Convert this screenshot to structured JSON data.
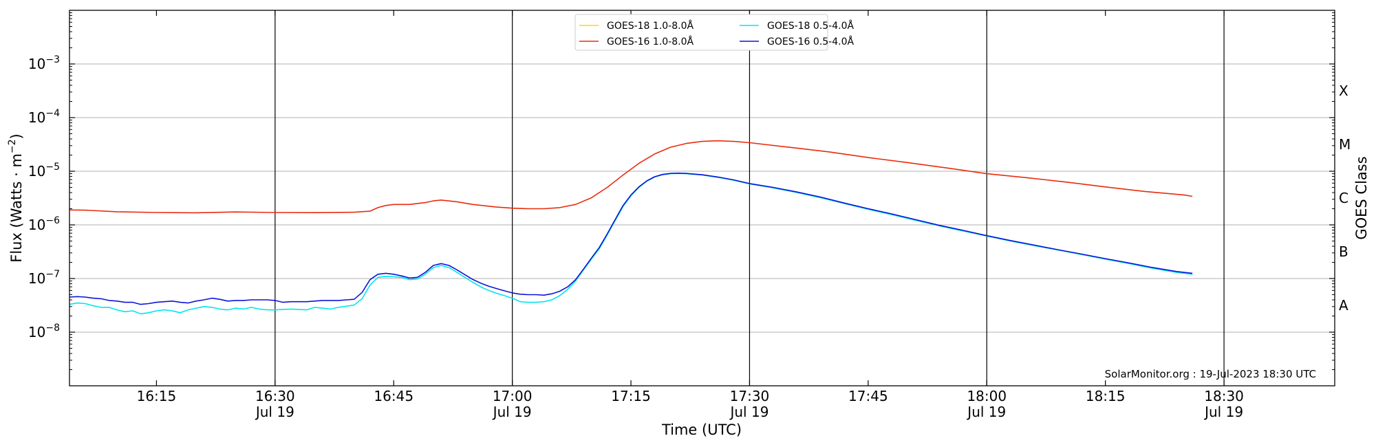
{
  "chart_data": {
    "type": "line",
    "title": "",
    "xlabel": "Time (UTC)",
    "ylabel": "Flux (Watts · m",
    "ylabel_sup": "−2",
    "ylabel_end": ")",
    "y2label": "GOES Class",
    "y_scale": "log",
    "ylim": [
      1e-09,
      0.01
    ],
    "xlim": [
      "2023-07-19 16:04",
      "2023-07-19 18:44"
    ],
    "grid": "horizontal",
    "legend_position": "top-center",
    "annotation": "SolarMonitor.org : 19-Jul-2023 18:30 UTC",
    "y_ticks": [
      {
        "value": 1e-08,
        "base": "10",
        "exp": "−8"
      },
      {
        "value": 1e-07,
        "base": "10",
        "exp": "−7"
      },
      {
        "value": 1e-06,
        "base": "10",
        "exp": "−6"
      },
      {
        "value": 1e-05,
        "base": "10",
        "exp": "−5"
      },
      {
        "value": 0.0001,
        "base": "10",
        "exp": "−4"
      },
      {
        "value": 0.001,
        "base": "10",
        "exp": "−3"
      }
    ],
    "x_ticks": [
      {
        "time": "16:15",
        "label": "16:15",
        "sub": ""
      },
      {
        "time": "16:30",
        "label": "16:30",
        "sub": "Jul 19"
      },
      {
        "time": "16:45",
        "label": "16:45",
        "sub": ""
      },
      {
        "time": "17:00",
        "label": "17:00",
        "sub": "Jul 19"
      },
      {
        "time": "17:15",
        "label": "17:15",
        "sub": ""
      },
      {
        "time": "17:30",
        "label": "17:30",
        "sub": "Jul 19"
      },
      {
        "time": "17:45",
        "label": "17:45",
        "sub": ""
      },
      {
        "time": "18:00",
        "label": "18:00",
        "sub": "Jul 19"
      },
      {
        "time": "18:15",
        "label": "18:15",
        "sub": ""
      },
      {
        "time": "18:30",
        "label": "18:30",
        "sub": "Jul 19"
      }
    ],
    "day_lines": [
      "16:30",
      "17:00",
      "17:30",
      "18:00",
      "18:30"
    ],
    "goes_classes": [
      {
        "label": "A",
        "value": 3.16e-08
      },
      {
        "label": "B",
        "value": 3.16e-07
      },
      {
        "label": "C",
        "value": 3.16e-06
      },
      {
        "label": "M",
        "value": 3.16e-05
      },
      {
        "label": "X",
        "value": 0.000316
      }
    ],
    "series": [
      {
        "name": "GOES-18 1.0-8.0Å",
        "color": "#ffd700",
        "points": []
      },
      {
        "name": "GOES-16 1.0-8.0Å",
        "color": "#e82b0c",
        "points": [
          [
            "16:04",
            1.9e-06
          ],
          [
            "16:06",
            1.88e-06
          ],
          [
            "16:10",
            1.76e-06
          ],
          [
            "16:15",
            1.7e-06
          ],
          [
            "16:20",
            1.68e-06
          ],
          [
            "16:25",
            1.74e-06
          ],
          [
            "16:30",
            1.7e-06
          ],
          [
            "16:35",
            1.69e-06
          ],
          [
            "16:40",
            1.72e-06
          ],
          [
            "16:42",
            1.8e-06
          ],
          [
            "16:43",
            2.1e-06
          ],
          [
            "16:44",
            2.3e-06
          ],
          [
            "16:45",
            2.4e-06
          ],
          [
            "16:47",
            2.4e-06
          ],
          [
            "16:49",
            2.6e-06
          ],
          [
            "16:50",
            2.8e-06
          ],
          [
            "16:51",
            2.9e-06
          ],
          [
            "16:53",
            2.7e-06
          ],
          [
            "16:55",
            2.4e-06
          ],
          [
            "16:58",
            2.15e-06
          ],
          [
            "17:00",
            2.05e-06
          ],
          [
            "17:02",
            2e-06
          ],
          [
            "17:04",
            2e-06
          ],
          [
            "17:06",
            2.1e-06
          ],
          [
            "17:08",
            2.4e-06
          ],
          [
            "17:10",
            3.2e-06
          ],
          [
            "17:12",
            5e-06
          ],
          [
            "17:14",
            8.5e-06
          ],
          [
            "17:16",
            1.4e-05
          ],
          [
            "17:18",
            2.1e-05
          ],
          [
            "17:20",
            2.8e-05
          ],
          [
            "17:22",
            3.3e-05
          ],
          [
            "17:24",
            3.6e-05
          ],
          [
            "17:26",
            3.7e-05
          ],
          [
            "17:28",
            3.6e-05
          ],
          [
            "17:30",
            3.4e-05
          ],
          [
            "17:35",
            2.8e-05
          ],
          [
            "17:40",
            2.3e-05
          ],
          [
            "17:45",
            1.8e-05
          ],
          [
            "17:50",
            1.45e-05
          ],
          [
            "17:55",
            1.15e-05
          ],
          [
            "18:00",
            9e-06
          ],
          [
            "18:05",
            7.6e-06
          ],
          [
            "18:10",
            6.3e-06
          ],
          [
            "18:15",
            5.1e-06
          ],
          [
            "18:20",
            4.2e-06
          ],
          [
            "18:25",
            3.6e-06
          ],
          [
            "18:26",
            3.4e-06
          ]
        ]
      },
      {
        "name": "GOES-18 0.5-4.0Å",
        "color": "#00e5ee",
        "points": [
          [
            "16:04",
            3.3e-08
          ],
          [
            "16:05",
            3.5e-08
          ],
          [
            "16:06",
            3.4e-08
          ],
          [
            "16:07",
            3.1e-08
          ],
          [
            "16:08",
            2.9e-08
          ],
          [
            "16:09",
            2.9e-08
          ],
          [
            "16:10",
            2.6e-08
          ],
          [
            "16:11",
            2.4e-08
          ],
          [
            "16:12",
            2.5e-08
          ],
          [
            "16:13",
            2.2e-08
          ],
          [
            "16:14",
            2.3e-08
          ],
          [
            "16:15",
            2.5e-08
          ],
          [
            "16:16",
            2.6e-08
          ],
          [
            "16:17",
            2.5e-08
          ],
          [
            "16:18",
            2.3e-08
          ],
          [
            "16:19",
            2.6e-08
          ],
          [
            "16:20",
            2.8e-08
          ],
          [
            "16:21",
            3e-08
          ],
          [
            "16:22",
            2.9e-08
          ],
          [
            "16:23",
            2.7e-08
          ],
          [
            "16:24",
            2.6e-08
          ],
          [
            "16:25",
            2.8e-08
          ],
          [
            "16:26",
            2.7e-08
          ],
          [
            "16:27",
            2.9e-08
          ],
          [
            "16:28",
            2.7e-08
          ],
          [
            "16:29",
            2.6e-08
          ],
          [
            "16:30",
            2.6e-08
          ],
          [
            "16:32",
            2.7e-08
          ],
          [
            "16:34",
            2.6e-08
          ],
          [
            "16:35",
            2.9e-08
          ],
          [
            "16:36",
            2.8e-08
          ],
          [
            "16:37",
            2.7e-08
          ],
          [
            "16:38",
            2.9e-08
          ],
          [
            "16:40",
            3.2e-08
          ],
          [
            "16:41",
            4.2e-08
          ],
          [
            "16:42",
            7.5e-08
          ],
          [
            "16:43",
            1.05e-07
          ],
          [
            "16:44",
            1.1e-07
          ],
          [
            "16:45",
            1.08e-07
          ],
          [
            "16:46",
            1.05e-07
          ],
          [
            "16:47",
            9.5e-08
          ],
          [
            "16:48",
            9.8e-08
          ],
          [
            "16:49",
            1.2e-07
          ],
          [
            "16:50",
            1.6e-07
          ],
          [
            "16:51",
            1.75e-07
          ],
          [
            "16:52",
            1.6e-07
          ],
          [
            "16:53",
            1.3e-07
          ],
          [
            "16:54",
            1.05e-07
          ],
          [
            "16:55",
            8.5e-08
          ],
          [
            "16:56",
            7e-08
          ],
          [
            "16:57",
            6e-08
          ],
          [
            "16:58",
            5.3e-08
          ],
          [
            "16:59",
            4.8e-08
          ],
          [
            "17:00",
            4.3e-08
          ],
          [
            "17:01",
            3.7e-08
          ],
          [
            "17:02",
            3.6e-08
          ],
          [
            "17:03",
            3.6e-08
          ],
          [
            "17:04",
            3.7e-08
          ],
          [
            "17:05",
            4e-08
          ],
          [
            "17:06",
            4.8e-08
          ],
          [
            "17:07",
            6.3e-08
          ],
          [
            "17:08",
            9e-08
          ],
          [
            "17:09",
            1.45e-07
          ],
          [
            "17:10",
            2.3e-07
          ],
          [
            "17:11",
            3.6e-07
          ],
          [
            "17:12",
            6.5e-07
          ],
          [
            "17:13",
            1.2e-06
          ],
          [
            "17:14",
            2.2e-06
          ],
          [
            "17:15",
            3.5e-06
          ],
          [
            "17:16",
            5e-06
          ],
          [
            "17:17",
            6.5e-06
          ],
          [
            "17:18",
            7.8e-06
          ],
          [
            "17:19",
            8.6e-06
          ],
          [
            "17:20",
            9e-06
          ],
          [
            "17:21",
            9.1e-06
          ],
          [
            "17:22",
            9e-06
          ],
          [
            "17:24",
            8.5e-06
          ],
          [
            "17:26",
            7.7e-06
          ],
          [
            "17:28",
            6.8e-06
          ],
          [
            "17:30",
            5.8e-06
          ],
          [
            "17:33",
            4.9e-06
          ],
          [
            "17:36",
            4e-06
          ],
          [
            "17:39",
            3.2e-06
          ],
          [
            "17:42",
            2.5e-06
          ],
          [
            "17:45",
            1.95e-06
          ],
          [
            "17:48",
            1.55e-06
          ],
          [
            "17:51",
            1.22e-06
          ],
          [
            "17:54",
            9.6e-07
          ],
          [
            "17:57",
            7.7e-07
          ],
          [
            "18:00",
            6.2e-07
          ],
          [
            "18:03",
            5e-07
          ],
          [
            "18:06",
            4.1e-07
          ],
          [
            "18:09",
            3.4e-07
          ],
          [
            "18:12",
            2.8e-07
          ],
          [
            "18:15",
            2.3e-07
          ],
          [
            "18:18",
            1.9e-07
          ],
          [
            "18:21",
            1.55e-07
          ],
          [
            "18:24",
            1.3e-07
          ],
          [
            "18:26",
            1.2e-07
          ]
        ]
      },
      {
        "name": "GOES-16 0.5-4.0Å",
        "color": "#0c14d6",
        "points": [
          [
            "16:04",
            4.5e-08
          ],
          [
            "16:05",
            4.6e-08
          ],
          [
            "16:06",
            4.5e-08
          ],
          [
            "16:07",
            4.3e-08
          ],
          [
            "16:08",
            4.2e-08
          ],
          [
            "16:09",
            3.9e-08
          ],
          [
            "16:10",
            3.8e-08
          ],
          [
            "16:11",
            3.6e-08
          ],
          [
            "16:12",
            3.6e-08
          ],
          [
            "16:13",
            3.3e-08
          ],
          [
            "16:14",
            3.4e-08
          ],
          [
            "16:15",
            3.6e-08
          ],
          [
            "16:16",
            3.7e-08
          ],
          [
            "16:17",
            3.8e-08
          ],
          [
            "16:18",
            3.6e-08
          ],
          [
            "16:19",
            3.5e-08
          ],
          [
            "16:20",
            3.8e-08
          ],
          [
            "16:21",
            4e-08
          ],
          [
            "16:22",
            4.3e-08
          ],
          [
            "16:23",
            4.1e-08
          ],
          [
            "16:24",
            3.8e-08
          ],
          [
            "16:25",
            3.9e-08
          ],
          [
            "16:26",
            3.9e-08
          ],
          [
            "16:27",
            4e-08
          ],
          [
            "16:28",
            4e-08
          ],
          [
            "16:29",
            4e-08
          ],
          [
            "16:30",
            3.9e-08
          ],
          [
            "16:31",
            3.6e-08
          ],
          [
            "16:32",
            3.7e-08
          ],
          [
            "16:34",
            3.7e-08
          ],
          [
            "16:35",
            3.8e-08
          ],
          [
            "16:36",
            3.9e-08
          ],
          [
            "16:38",
            3.9e-08
          ],
          [
            "16:40",
            4.1e-08
          ],
          [
            "16:41",
            5.5e-08
          ],
          [
            "16:42",
            9.5e-08
          ],
          [
            "16:43",
            1.2e-07
          ],
          [
            "16:44",
            1.25e-07
          ],
          [
            "16:45",
            1.2e-07
          ],
          [
            "16:46",
            1.12e-07
          ],
          [
            "16:47",
            1.02e-07
          ],
          [
            "16:48",
            1.05e-07
          ],
          [
            "16:49",
            1.3e-07
          ],
          [
            "16:50",
            1.75e-07
          ],
          [
            "16:51",
            1.9e-07
          ],
          [
            "16:52",
            1.75e-07
          ],
          [
            "16:53",
            1.45e-07
          ],
          [
            "16:54",
            1.18e-07
          ],
          [
            "16:55",
            9.6e-08
          ],
          [
            "16:56",
            8.2e-08
          ],
          [
            "16:57",
            7.2e-08
          ],
          [
            "16:58",
            6.5e-08
          ],
          [
            "16:59",
            5.9e-08
          ],
          [
            "17:00",
            5.4e-08
          ],
          [
            "17:01",
            5.1e-08
          ],
          [
            "17:02",
            5e-08
          ],
          [
            "17:03",
            5e-08
          ],
          [
            "17:04",
            4.9e-08
          ],
          [
            "17:05",
            5.2e-08
          ],
          [
            "17:06",
            5.8e-08
          ],
          [
            "17:07",
            7e-08
          ],
          [
            "17:08",
            9.5e-08
          ],
          [
            "17:09",
            1.5e-07
          ],
          [
            "17:10",
            2.4e-07
          ],
          [
            "17:11",
            3.8e-07
          ],
          [
            "17:12",
            6.8e-07
          ],
          [
            "17:13",
            1.25e-06
          ],
          [
            "17:14",
            2.3e-06
          ],
          [
            "17:15",
            3.6e-06
          ],
          [
            "17:16",
            5.1e-06
          ],
          [
            "17:17",
            6.6e-06
          ],
          [
            "17:18",
            7.9e-06
          ],
          [
            "17:19",
            8.7e-06
          ],
          [
            "17:20",
            9.1e-06
          ],
          [
            "17:21",
            9.2e-06
          ],
          [
            "17:22",
            9.1e-06
          ],
          [
            "17:24",
            8.6e-06
          ],
          [
            "17:26",
            7.8e-06
          ],
          [
            "17:28",
            6.9e-06
          ],
          [
            "17:30",
            5.9e-06
          ],
          [
            "17:33",
            5e-06
          ],
          [
            "17:36",
            4.1e-06
          ],
          [
            "17:39",
            3.3e-06
          ],
          [
            "17:42",
            2.55e-06
          ],
          [
            "17:45",
            2e-06
          ],
          [
            "17:48",
            1.6e-06
          ],
          [
            "17:51",
            1.25e-06
          ],
          [
            "17:54",
            9.8e-07
          ],
          [
            "17:57",
            7.9e-07
          ],
          [
            "18:00",
            6.3e-07
          ],
          [
            "18:03",
            5.1e-07
          ],
          [
            "18:06",
            4.2e-07
          ],
          [
            "18:09",
            3.45e-07
          ],
          [
            "18:12",
            2.85e-07
          ],
          [
            "18:15",
            2.35e-07
          ],
          [
            "18:18",
            1.95e-07
          ],
          [
            "18:21",
            1.6e-07
          ],
          [
            "18:24",
            1.35e-07
          ],
          [
            "18:26",
            1.25e-07
          ]
        ]
      }
    ]
  }
}
